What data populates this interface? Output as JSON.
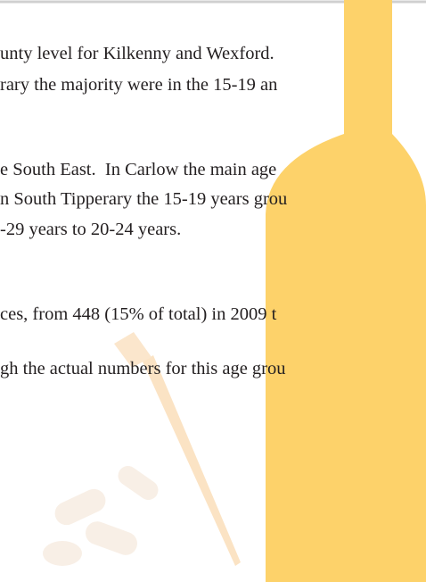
{
  "lines": [
    "unty level for Kilkenny and Wexford.",
    "rary the majority were in the 15-19 an",
    "e South East.  In Carlow the main age",
    "n South Tipperary the 15-19 years grou",
    "-29 years to 20-24 years.",
    "ces, from 448 (15% of total) in 2009 t",
    "gh the actual numbers for this age grou"
  ]
}
